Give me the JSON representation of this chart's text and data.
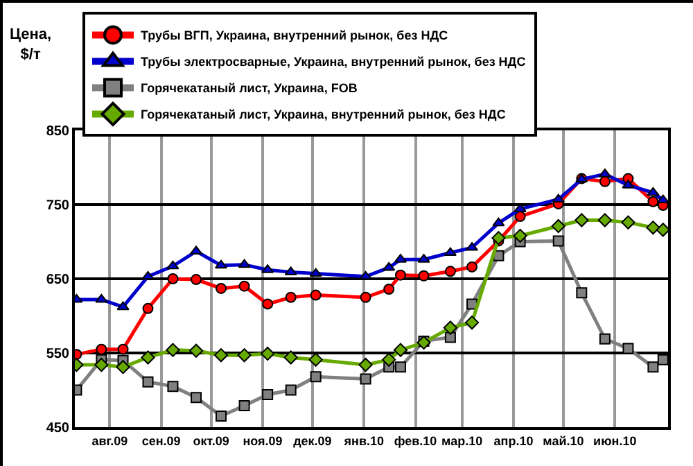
{
  "chart_data": {
    "type": "line",
    "ylabel": "Цена, $/т",
    "x": [
      "2009-07-12",
      "2009-07-27",
      "2009-08-09",
      "2009-08-24",
      "2009-09-08",
      "2009-09-22",
      "2009-10-07",
      "2009-10-21",
      "2009-11-04",
      "2009-11-18",
      "2009-12-03",
      "2010-01-02",
      "2010-01-16",
      "2010-01-23",
      "2010-02-06",
      "2010-02-22",
      "2010-03-07",
      "2010-03-23",
      "2010-04-05",
      "2010-04-28",
      "2010-05-12",
      "2010-05-26",
      "2010-06-09",
      "2010-06-24",
      "2010-06-30"
    ],
    "series": [
      {
        "name": "Трубы ВГП, Украина, внутренний рынок, без НДС",
        "color": "#ff0000",
        "marker": "circle",
        "values": [
          548,
          555,
          555,
          610,
          650,
          649,
          637,
          640,
          616,
          625,
          628,
          625,
          636,
          655,
          654,
          660,
          666,
          701,
          734,
          751,
          785,
          781,
          785,
          754,
          749
        ]
      },
      {
        "name": "Трубы электросварные, Украина, внутренний рынок, без НДС",
        "color": "#0000cc",
        "marker": "triangle",
        "values": [
          622,
          622,
          612,
          653,
          667,
          687,
          668,
          669,
          662,
          659,
          657,
          653,
          665,
          676,
          676,
          685,
          692,
          725,
          744,
          757,
          784,
          791,
          776,
          766,
          756
        ]
      },
      {
        "name": "Горячекатаный лист, Украина, FOB",
        "color": "#808080",
        "marker": "square",
        "values": [
          500,
          541,
          540,
          511,
          505,
          490,
          465,
          479,
          494,
          500,
          518,
          515,
          531,
          531,
          566,
          571,
          616,
          681,
          700,
          701,
          631,
          569,
          556,
          531,
          541
        ]
      },
      {
        "name": "Горячекатаный лист, Украина, внутренний рынок, без НДС",
        "color": "#66aa00",
        "marker": "diamond",
        "values": [
          534,
          534,
          531,
          544,
          554,
          553,
          547,
          547,
          549,
          544,
          541,
          534,
          541,
          554,
          564,
          584,
          591,
          705,
          708,
          721,
          729,
          729,
          726,
          719,
          716
        ]
      }
    ],
    "xlim": [
      "2009-07-11",
      "2010-07-03"
    ],
    "xticks": [
      {
        "value": "2009-08-01",
        "label": "авг.09"
      },
      {
        "value": "2009-09-01",
        "label": "сен.09"
      },
      {
        "value": "2009-10-01",
        "label": "окт.09"
      },
      {
        "value": "2009-11-01",
        "label": "ноя.09"
      },
      {
        "value": "2009-12-01",
        "label": "дек.09"
      },
      {
        "value": "2010-01-01",
        "label": "янв.10"
      },
      {
        "value": "2010-02-01",
        "label": "фев.10"
      },
      {
        "value": "2010-03-01",
        "label": "мар.10"
      },
      {
        "value": "2010-04-01",
        "label": "апр.10"
      },
      {
        "value": "2010-05-01",
        "label": "май.10"
      },
      {
        "value": "2010-06-01",
        "label": "июн.10"
      }
    ],
    "ylim": [
      450,
      850
    ],
    "yticks": [
      450,
      550,
      650,
      750,
      850
    ],
    "grid": true,
    "legend": "top",
    "line_style": "solid"
  }
}
